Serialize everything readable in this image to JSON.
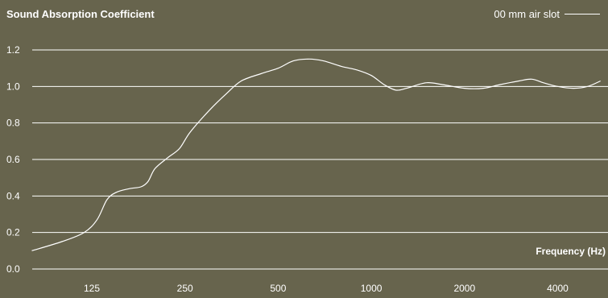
{
  "chart_data": {
    "type": "line",
    "title": "Sound Absorption Coefficient",
    "xlabel": "Frequency (Hz)",
    "ylabel": "",
    "x_scale": "log",
    "x_ticks": [
      "125",
      "250",
      "500",
      "1000",
      "2000",
      "4000"
    ],
    "y_ticks": [
      "0.0",
      "0.2",
      "0.4",
      "0.6",
      "0.8",
      "1.0",
      "1.2"
    ],
    "ylim": [
      0,
      1.2
    ],
    "grid": "horizontal",
    "legend_position": "top-right",
    "colors": {
      "background": "#67644d",
      "line": "#ffffff",
      "grid": "#ffffff"
    },
    "series": [
      {
        "name": "00 mm air slot",
        "points": [
          [
            80,
            0.1
          ],
          [
            100,
            0.15
          ],
          [
            118,
            0.2
          ],
          [
            130,
            0.27
          ],
          [
            140,
            0.38
          ],
          [
            150,
            0.42
          ],
          [
            165,
            0.44
          ],
          [
            180,
            0.45
          ],
          [
            190,
            0.48
          ],
          [
            200,
            0.55
          ],
          [
            220,
            0.61
          ],
          [
            240,
            0.66
          ],
          [
            260,
            0.75
          ],
          [
            300,
            0.87
          ],
          [
            340,
            0.96
          ],
          [
            380,
            1.03
          ],
          [
            440,
            1.07
          ],
          [
            500,
            1.1
          ],
          [
            560,
            1.14
          ],
          [
            630,
            1.15
          ],
          [
            700,
            1.14
          ],
          [
            800,
            1.11
          ],
          [
            900,
            1.09
          ],
          [
            1000,
            1.06
          ],
          [
            1100,
            1.01
          ],
          [
            1200,
            0.98
          ],
          [
            1300,
            0.99
          ],
          [
            1500,
            1.02
          ],
          [
            1700,
            1.01
          ],
          [
            2000,
            0.99
          ],
          [
            2300,
            0.99
          ],
          [
            2600,
            1.01
          ],
          [
            3000,
            1.03
          ],
          [
            3300,
            1.04
          ],
          [
            3600,
            1.02
          ],
          [
            4000,
            1.0
          ],
          [
            4500,
            0.99
          ],
          [
            5000,
            1.0
          ],
          [
            5500,
            1.03
          ]
        ]
      }
    ]
  }
}
